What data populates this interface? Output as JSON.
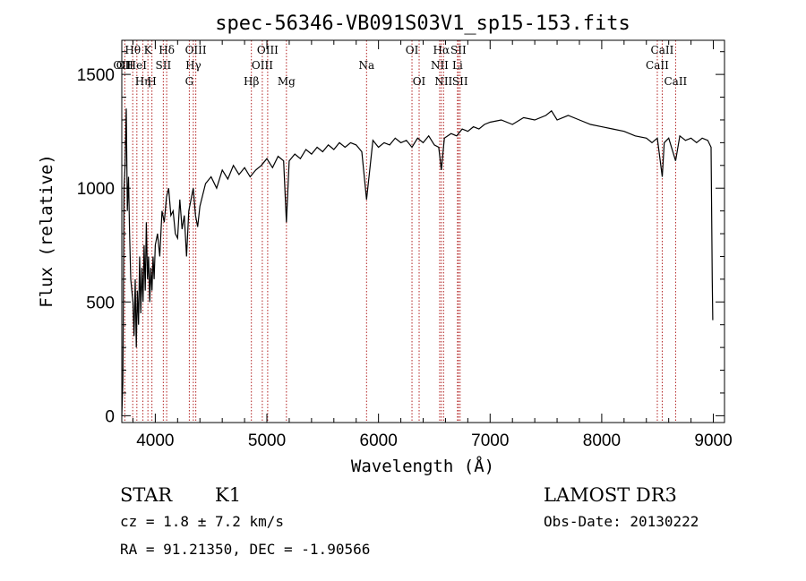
{
  "chart_data": {
    "type": "line",
    "title": "spec-56346-VB091S03V1_sp15-153.fits",
    "xlabel": "Wavelength (Å)",
    "ylabel": "Flux (relative)",
    "xlim": [
      3700,
      9100
    ],
    "ylim": [
      -30,
      1650
    ],
    "x_ticks": [
      4000,
      5000,
      6000,
      7000,
      8000,
      9000
    ],
    "x_tick_labels": [
      "4000",
      "5000",
      "6000",
      "7000",
      "8000",
      "9000"
    ],
    "y_ticks": [
      0,
      500,
      1000,
      1500
    ],
    "y_tick_labels": [
      "0",
      "500",
      "1000",
      "1500"
    ],
    "series": [
      {
        "name": "flux",
        "x": [
          3700,
          3710,
          3720,
          3730,
          3740,
          3750,
          3760,
          3770,
          3780,
          3790,
          3800,
          3810,
          3820,
          3830,
          3840,
          3850,
          3860,
          3870,
          3880,
          3890,
          3900,
          3910,
          3920,
          3930,
          3940,
          3950,
          3960,
          3970,
          3980,
          3990,
          4000,
          4020,
          4040,
          4060,
          4080,
          4100,
          4120,
          4140,
          4160,
          4180,
          4200,
          4220,
          4240,
          4260,
          4280,
          4300,
          4320,
          4340,
          4360,
          4380,
          4400,
          4450,
          4500,
          4550,
          4600,
          4650,
          4700,
          4750,
          4800,
          4850,
          4900,
          4950,
          5000,
          5050,
          5100,
          5150,
          5175,
          5200,
          5250,
          5300,
          5350,
          5400,
          5450,
          5500,
          5550,
          5600,
          5650,
          5700,
          5750,
          5800,
          5850,
          5893,
          5950,
          6000,
          6050,
          6100,
          6150,
          6200,
          6250,
          6300,
          6350,
          6400,
          6450,
          6500,
          6540,
          6563,
          6590,
          6650,
          6700,
          6750,
          6800,
          6850,
          6900,
          6950,
          7000,
          7100,
          7200,
          7300,
          7400,
          7500,
          7550,
          7600,
          7700,
          7800,
          7900,
          8000,
          8100,
          8200,
          8300,
          8400,
          8450,
          8498,
          8542,
          8560,
          8600,
          8662,
          8700,
          8750,
          8800,
          8850,
          8900,
          8950,
          8980,
          8990,
          8995
        ],
        "values": [
          0,
          150,
          1000,
          1100,
          1350,
          900,
          1050,
          800,
          600,
          550,
          500,
          350,
          600,
          300,
          550,
          400,
          700,
          450,
          650,
          500,
          750,
          550,
          850,
          600,
          700,
          500,
          650,
          550,
          700,
          600,
          750,
          800,
          700,
          900,
          850,
          960,
          1000,
          880,
          900,
          800,
          780,
          950,
          820,
          880,
          700,
          900,
          950,
          1000,
          880,
          830,
          920,
          1020,
          1050,
          1000,
          1080,
          1040,
          1100,
          1060,
          1090,
          1050,
          1080,
          1100,
          1130,
          1090,
          1140,
          1120,
          850,
          1120,
          1150,
          1130,
          1170,
          1150,
          1180,
          1160,
          1190,
          1170,
          1200,
          1180,
          1200,
          1190,
          1160,
          950,
          1210,
          1180,
          1200,
          1190,
          1220,
          1200,
          1210,
          1180,
          1220,
          1200,
          1230,
          1190,
          1180,
          1080,
          1220,
          1240,
          1230,
          1260,
          1250,
          1270,
          1260,
          1280,
          1290,
          1300,
          1280,
          1310,
          1300,
          1320,
          1340,
          1300,
          1320,
          1300,
          1280,
          1270,
          1260,
          1250,
          1230,
          1220,
          1200,
          1220,
          1050,
          1200,
          1220,
          1120,
          1230,
          1210,
          1220,
          1200,
          1220,
          1210,
          1180,
          600,
          420
        ]
      }
    ],
    "spectral_lines": [
      {
        "wl": 3700,
        "row": 1,
        "label": "OII"
      },
      {
        "wl": 3727,
        "row": 1,
        "label": "OII"
      },
      {
        "wl": 3798,
        "row": 0,
        "label": "Hθ"
      },
      {
        "wl": 3835,
        "row": 1,
        "label": "HeI"
      },
      {
        "wl": 3889,
        "row": 2,
        "label": "Hη"
      },
      {
        "wl": 3934,
        "row": 0,
        "label": "K"
      },
      {
        "wl": 3970,
        "row": 2,
        "label": "H"
      },
      {
        "wl": 4072,
        "row": 1,
        "label": "SII"
      },
      {
        "wl": 4102,
        "row": 0,
        "label": "Hδ"
      },
      {
        "wl": 4305,
        "row": 2,
        "label": "G"
      },
      {
        "wl": 4341,
        "row": 1,
        "label": "Hγ"
      },
      {
        "wl": 4363,
        "row": 0,
        "label": "OIII"
      },
      {
        "wl": 4861,
        "row": 2,
        "label": "Hβ"
      },
      {
        "wl": 4959,
        "row": 1,
        "label": "OIII"
      },
      {
        "wl": 5007,
        "row": 0,
        "label": "OIII"
      },
      {
        "wl": 5175,
        "row": 2,
        "label": "Mg"
      },
      {
        "wl": 5893,
        "row": 1,
        "label": "Na"
      },
      {
        "wl": 6300,
        "row": 0,
        "label": "OI"
      },
      {
        "wl": 6364,
        "row": 2,
        "label": "OI"
      },
      {
        "wl": 6548,
        "row": 1,
        "label": "NII"
      },
      {
        "wl": 6563,
        "row": 0,
        "label": "Hα"
      },
      {
        "wl": 6583,
        "row": 2,
        "label": "NII"
      },
      {
        "wl": 6708,
        "row": 1,
        "label": "Li"
      },
      {
        "wl": 6716,
        "row": 0,
        "label": "SII"
      },
      {
        "wl": 6731,
        "row": 2,
        "label": "SII"
      },
      {
        "wl": 8498,
        "row": 1,
        "label": "CaII"
      },
      {
        "wl": 8542,
        "row": 0,
        "label": "CaII"
      },
      {
        "wl": 8662,
        "row": 2,
        "label": "CaII"
      }
    ]
  },
  "info": {
    "object_class": "STAR",
    "subclass": "K1",
    "survey": "LAMOST DR3",
    "cz": "cz = 1.8 ± 7.2 km/s",
    "obs_date": "Obs-Date: 20130222",
    "coords": "RA =  91.21350, DEC =  -1.90566"
  },
  "colors": {
    "line_marker": "#b22222",
    "spectrum": "#000000"
  }
}
